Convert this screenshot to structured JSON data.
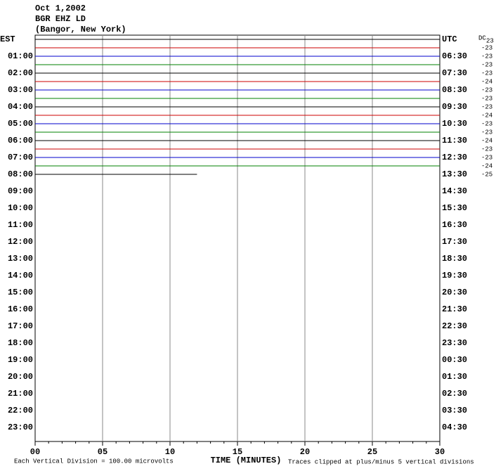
{
  "chart_data": {
    "type": "helicorder",
    "title_lines": [
      "Oct 1,2002",
      "BGR EHZ LD",
      "(Bangor, New York)"
    ],
    "left_header": "EST",
    "right_header": "UTC",
    "left_labels": [
      "EST",
      "01:00",
      "02:00",
      "03:00",
      "04:00",
      "05:00",
      "06:00",
      "07:00",
      "08:00",
      "09:00",
      "10:00",
      "11:00",
      "12:00",
      "13:00",
      "14:00",
      "15:00",
      "16:00",
      "17:00",
      "18:00",
      "19:00",
      "20:00",
      "21:00",
      "22:00",
      "23:00"
    ],
    "right_labels": [
      "UTC",
      "06:30",
      "07:30",
      "08:30",
      "09:30",
      "10:30",
      "11:30",
      "12:30",
      "13:30",
      "14:30",
      "15:30",
      "16:30",
      "17:30",
      "18:30",
      "19:30",
      "20:30",
      "21:30",
      "22:30",
      "23:30",
      "00:30",
      "01:30",
      "02:30",
      "03:30",
      "04:30"
    ],
    "dc_label": "DC",
    "dc_offsets": [
      23,
      -23,
      -23,
      -23,
      -23,
      -24,
      -23,
      -23,
      -23,
      -24,
      -23,
      -23,
      -24,
      -23,
      -23,
      -24,
      -25
    ],
    "trace_colors": [
      "#000000",
      "#cc0000",
      "#0000cc",
      "#008000",
      "#000000",
      "#cc0000",
      "#0000cc",
      "#008000",
      "#000000",
      "#cc0000",
      "#0000cc",
      "#008000",
      "#000000",
      "#cc0000",
      "#0000cc",
      "#008000",
      "#000000"
    ],
    "trace_end_minutes": [
      30,
      30,
      30,
      30,
      30,
      30,
      30,
      30,
      30,
      30,
      30,
      30,
      30,
      30,
      30,
      30,
      12
    ],
    "xlim": [
      0,
      30
    ],
    "xticks": [
      {
        "value": 0,
        "label": "00"
      },
      {
        "value": 5,
        "label": "05"
      },
      10,
      15,
      20,
      25,
      30
    ],
    "xminor_ticks": [
      0,
      1,
      2,
      3,
      4,
      5,
      6,
      7,
      8,
      9,
      10,
      11,
      12,
      13,
      14,
      15,
      16,
      17,
      18,
      19,
      20,
      21,
      22,
      23,
      24,
      25,
      26,
      27,
      28,
      29,
      30
    ],
    "xlabel": "TIME (MINUTES)",
    "footer_left": "Each Vertical Division =  100.00 microvolts",
    "footer_right": "Traces clipped at plus/minus 5 vertical divisions",
    "grid": true
  }
}
